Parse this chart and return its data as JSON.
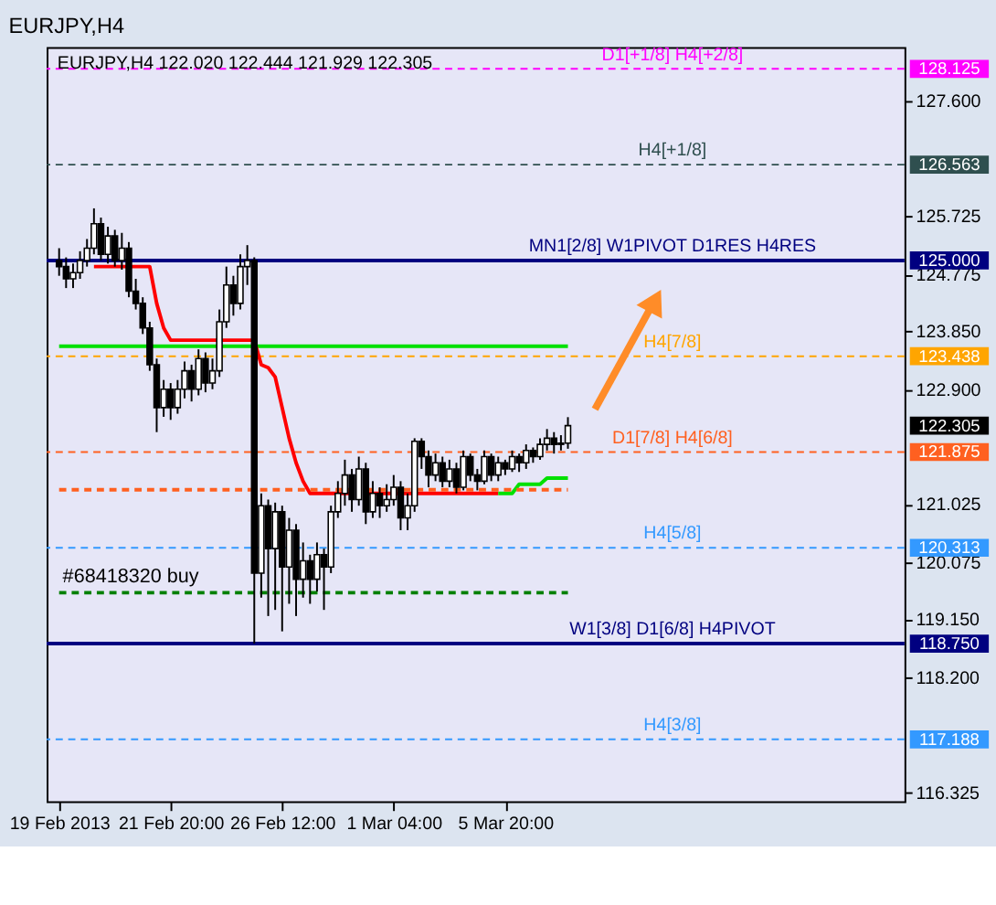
{
  "chart_data": {
    "type": "candlestick",
    "title": "EURJPY,H4",
    "subtitle": "EURJPY,H4  122.020 122.444 121.929 122.305",
    "categories": [
      "19 Feb 2013",
      null,
      null,
      null,
      null,
      null,
      null,
      null,
      null,
      null,
      null,
      null,
      null,
      null,
      null,
      null,
      "21 Feb 20:00",
      null,
      null,
      null,
      null,
      null,
      null,
      null,
      null,
      null,
      null,
      null,
      null,
      null,
      null,
      null,
      "26 Feb 12:00",
      null,
      null,
      null,
      null,
      null,
      null,
      null,
      null,
      null,
      null,
      null,
      null,
      null,
      null,
      null,
      "1 Mar 04:00",
      null,
      null,
      null,
      null,
      null,
      null,
      null,
      null,
      null,
      null,
      null,
      null,
      null,
      null,
      null,
      "5 Mar 20:00",
      null,
      null,
      null,
      null,
      null,
      null,
      null,
      null,
      null
    ],
    "ohlc": [
      [
        125.0,
        125.2,
        124.75,
        124.9
      ],
      [
        124.9,
        125.05,
        124.55,
        124.7
      ],
      [
        124.7,
        124.95,
        124.55,
        124.8
      ],
      [
        124.8,
        125.15,
        124.7,
        125.0
      ],
      [
        125.0,
        125.35,
        124.9,
        125.2
      ],
      [
        125.2,
        125.85,
        125.1,
        125.6
      ],
      [
        125.6,
        125.7,
        125.0,
        125.1
      ],
      [
        125.1,
        125.55,
        124.95,
        125.4
      ],
      [
        125.4,
        125.5,
        124.9,
        125.0
      ],
      [
        125.0,
        125.45,
        124.85,
        125.2
      ],
      [
        125.2,
        125.3,
        124.4,
        124.5
      ],
      [
        124.5,
        124.7,
        124.2,
        124.3
      ],
      [
        124.3,
        124.4,
        123.8,
        123.9
      ],
      [
        123.9,
        124.0,
        123.2,
        123.3
      ],
      [
        123.3,
        123.4,
        122.2,
        122.6
      ],
      [
        122.6,
        123.05,
        122.45,
        122.9
      ],
      [
        122.9,
        123.0,
        122.4,
        122.6
      ],
      [
        122.6,
        123.05,
        122.5,
        122.9
      ],
      [
        122.9,
        123.35,
        122.75,
        123.2
      ],
      [
        123.2,
        123.3,
        122.7,
        122.9
      ],
      [
        122.9,
        123.55,
        122.8,
        123.4
      ],
      [
        123.4,
        123.5,
        122.85,
        123.0
      ],
      [
        123.0,
        123.4,
        122.9,
        123.2
      ],
      [
        123.2,
        124.2,
        123.1,
        124.0
      ],
      [
        124.0,
        124.9,
        123.9,
        124.6
      ],
      [
        124.6,
        124.75,
        124.1,
        124.3
      ],
      [
        124.3,
        125.1,
        124.2,
        124.9
      ],
      [
        124.9,
        125.25,
        124.6,
        125.0
      ],
      [
        125.0,
        125.05,
        118.75,
        119.9
      ],
      [
        119.9,
        121.2,
        119.5,
        121.0
      ],
      [
        121.0,
        121.1,
        119.2,
        120.3
      ],
      [
        120.3,
        121.05,
        119.3,
        120.9
      ],
      [
        120.9,
        121.0,
        118.95,
        120.0
      ],
      [
        120.0,
        120.8,
        119.4,
        120.6
      ],
      [
        120.6,
        120.7,
        119.2,
        119.8
      ],
      [
        119.8,
        120.4,
        119.5,
        120.1
      ],
      [
        120.1,
        120.2,
        119.4,
        119.8
      ],
      [
        119.8,
        120.4,
        119.6,
        120.2
      ],
      [
        120.2,
        120.3,
        119.3,
        120.0
      ],
      [
        120.0,
        121.0,
        119.9,
        120.9
      ],
      [
        120.9,
        121.4,
        120.8,
        121.2
      ],
      [
        121.2,
        121.75,
        121.0,
        121.5
      ],
      [
        121.5,
        121.6,
        120.9,
        121.1
      ],
      [
        121.1,
        121.8,
        121.0,
        121.6
      ],
      [
        121.6,
        121.7,
        120.7,
        120.9
      ],
      [
        120.9,
        121.4,
        120.8,
        121.2
      ],
      [
        121.2,
        121.3,
        120.8,
        121.0
      ],
      [
        121.0,
        121.35,
        120.9,
        121.1
      ],
      [
        121.1,
        121.5,
        121.0,
        121.3
      ],
      [
        121.3,
        121.4,
        120.6,
        120.8
      ],
      [
        120.8,
        121.2,
        120.6,
        121.0
      ],
      [
        121.0,
        122.1,
        120.9,
        122.05
      ],
      [
        122.05,
        122.1,
        121.6,
        121.8
      ],
      [
        121.8,
        121.9,
        121.3,
        121.5
      ],
      [
        121.5,
        121.85,
        121.4,
        121.7
      ],
      [
        121.7,
        121.8,
        121.3,
        121.4
      ],
      [
        121.4,
        121.75,
        121.3,
        121.6
      ],
      [
        121.6,
        121.7,
        121.2,
        121.3
      ],
      [
        121.3,
        121.9,
        121.25,
        121.8
      ],
      [
        121.8,
        121.85,
        121.4,
        121.5
      ],
      [
        121.5,
        121.6,
        121.25,
        121.4
      ],
      [
        121.4,
        121.9,
        121.35,
        121.8
      ],
      [
        121.8,
        121.85,
        121.4,
        121.5
      ],
      [
        121.5,
        121.8,
        121.4,
        121.7
      ],
      [
        121.7,
        121.75,
        121.5,
        121.6
      ],
      [
        121.6,
        121.9,
        121.55,
        121.8
      ],
      [
        121.8,
        121.85,
        121.55,
        121.7
      ],
      [
        121.7,
        122.0,
        121.6,
        121.9
      ],
      [
        121.9,
        121.95,
        121.7,
        121.8
      ],
      [
        121.8,
        122.1,
        121.75,
        122.0
      ],
      [
        122.0,
        122.25,
        121.9,
        122.1
      ],
      [
        122.1,
        122.2,
        121.85,
        122.0
      ],
      [
        122.0,
        122.15,
        121.9,
        122.02
      ],
      [
        122.02,
        122.444,
        121.929,
        122.305
      ]
    ],
    "series": [
      {
        "type": "line",
        "color": "#00e000",
        "values": [
          123.6,
          123.6,
          123.6,
          123.6,
          123.6,
          123.6,
          123.6,
          123.6,
          123.6,
          123.6,
          123.6,
          123.6,
          123.6,
          123.6,
          123.6,
          123.6,
          123.6,
          123.6,
          123.6,
          123.6,
          123.6,
          123.6,
          123.6,
          123.6,
          123.6,
          123.6,
          123.6,
          123.6,
          123.6,
          123.6,
          123.6,
          123.6,
          123.6,
          123.6,
          123.6,
          123.6,
          123.6,
          123.6,
          123.6,
          123.6,
          123.6,
          123.6,
          123.6,
          123.6,
          123.6,
          123.6,
          123.6,
          123.6,
          123.6,
          123.6,
          123.6,
          123.6,
          123.6,
          123.6,
          123.6,
          123.6,
          123.6,
          123.6,
          123.6,
          123.6,
          123.6,
          123.6,
          123.6,
          123.6,
          123.6,
          123.6,
          123.6,
          123.6,
          123.6,
          123.6,
          123.6,
          123.6,
          123.6,
          123.6
        ]
      },
      {
        "type": "line",
        "color": "#ff0000",
        "values": [
          null,
          null,
          null,
          null,
          null,
          124.9,
          124.9,
          124.9,
          124.9,
          124.9,
          124.9,
          124.9,
          124.9,
          124.9,
          124.3,
          123.9,
          123.7,
          123.7,
          123.7,
          123.7,
          123.7,
          123.7,
          123.7,
          123.7,
          123.7,
          123.7,
          123.7,
          123.7,
          123.7,
          123.3,
          123.25,
          123.1,
          122.6,
          122.1,
          121.7,
          121.4,
          121.2,
          121.2,
          121.2,
          121.2,
          121.2,
          121.2,
          121.2,
          null,
          121.2,
          121.2,
          121.2,
          121.2,
          121.2,
          121.2,
          121.2,
          121.2,
          121.2,
          121.2,
          121.2,
          121.2,
          121.2,
          121.2,
          121.2,
          121.2,
          121.2,
          121.2,
          121.2,
          121.2,
          null,
          null,
          null,
          null,
          null,
          null,
          null,
          null,
          null,
          null
        ]
      },
      {
        "type": "line",
        "color": "#00e000",
        "values": [
          null,
          null,
          null,
          null,
          null,
          null,
          null,
          null,
          null,
          null,
          null,
          null,
          null,
          null,
          null,
          null,
          null,
          null,
          null,
          null,
          null,
          null,
          null,
          null,
          null,
          null,
          null,
          null,
          null,
          null,
          null,
          null,
          null,
          null,
          null,
          null,
          null,
          null,
          null,
          null,
          null,
          null,
          null,
          null,
          null,
          null,
          null,
          null,
          null,
          null,
          null,
          null,
          null,
          null,
          null,
          null,
          null,
          null,
          null,
          null,
          null,
          null,
          null,
          121.2,
          121.2,
          121.2,
          121.35,
          121.35,
          121.35,
          121.35,
          121.45,
          121.45,
          121.45,
          121.45
        ]
      },
      {
        "type": "line",
        "color": "#ff6020",
        "line_style": "dashed",
        "values": [
          121.26,
          121.26,
          121.26,
          121.26,
          121.26,
          121.26,
          121.26,
          121.26,
          121.26,
          121.26,
          121.26,
          121.26,
          121.26,
          121.26,
          121.26,
          121.26,
          121.26,
          121.26,
          121.26,
          121.26,
          121.26,
          121.26,
          121.26,
          121.26,
          121.26,
          121.26,
          121.26,
          121.26,
          121.26,
          121.26,
          121.26,
          121.26,
          121.26,
          121.26,
          121.26,
          121.26,
          121.26,
          121.26,
          121.26,
          121.26,
          121.26,
          121.26,
          121.26,
          null,
          121.26,
          121.26,
          121.26,
          121.26,
          121.26,
          121.26,
          121.26,
          121.26,
          121.26,
          121.26,
          121.26,
          121.26,
          121.26,
          121.26,
          121.26,
          121.26,
          121.26,
          121.26,
          121.26,
          121.26,
          121.26,
          121.26,
          121.26,
          121.26,
          121.26,
          121.26,
          121.26,
          121.26,
          121.26,
          121.26
        ]
      },
      {
        "type": "line",
        "name": "#68418320 buy",
        "color": "#008000",
        "line_style": "dashed",
        "values": [
          119.58,
          119.58,
          119.58,
          119.58,
          119.58,
          119.58,
          119.58,
          119.58,
          119.58,
          119.58,
          119.58,
          119.58,
          119.58,
          119.58,
          119.58,
          119.58,
          119.58,
          119.58,
          119.58,
          119.58,
          119.58,
          119.58,
          119.58,
          119.58,
          119.58,
          119.58,
          119.58,
          119.58,
          119.58,
          119.58,
          119.58,
          119.58,
          119.58,
          119.58,
          119.58,
          119.58,
          119.58,
          119.58,
          119.58,
          119.58,
          119.58,
          119.58,
          119.58,
          119.58,
          119.58,
          119.58,
          119.58,
          119.58,
          119.58,
          119.58,
          119.58,
          119.58,
          119.58,
          119.58,
          119.58,
          119.58,
          119.58,
          119.58,
          119.58,
          119.58,
          119.58,
          119.58,
          119.58,
          119.58,
          119.58,
          119.58,
          119.58,
          119.58,
          119.58,
          119.58,
          119.58,
          119.58,
          119.58,
          119.58
        ]
      }
    ],
    "ylim": [
      116.18,
      128.48
    ],
    "yticks": [
      {
        "value": 127.6,
        "label": "127.600"
      },
      {
        "value": 125.725,
        "label": "125.725"
      },
      {
        "value": 124.775,
        "label": "124.775"
      },
      {
        "value": 123.85,
        "label": "123.850"
      },
      {
        "value": 122.9,
        "label": "122.900"
      },
      {
        "value": 121.025,
        "label": "121.025"
      },
      {
        "value": 120.075,
        "label": "120.075"
      },
      {
        "value": 119.15,
        "label": "119.150"
      },
      {
        "value": 118.2,
        "label": "118.200"
      },
      {
        "value": 116.325,
        "label": "116.325"
      }
    ],
    "ref_lines": [
      {
        "axis": "y",
        "value": 128.125,
        "label": "D1[+1/8] H4[+2/8]",
        "color": "#ff00ff",
        "line_style": "dashed"
      },
      {
        "axis": "y",
        "value": 126.563,
        "label": "H4[+1/8]",
        "color": "#2f4f4f",
        "line_style": "dashed"
      },
      {
        "axis": "y",
        "value": 125.0,
        "label": "MN1[2/8] W1PIVOT D1RES H4RES",
        "color": "#000080",
        "line_style": "solid"
      },
      {
        "axis": "y",
        "value": 123.438,
        "label": "H4[7/8]",
        "color": "#ffa500",
        "line_style": "dashed"
      },
      {
        "axis": "y",
        "value": 121.875,
        "label": "D1[7/8] H4[6/8]",
        "color": "#ff6020",
        "line_style": "dashed"
      },
      {
        "axis": "y",
        "value": 120.313,
        "label": "H4[5/8]",
        "color": "#3399ff",
        "line_style": "dashed"
      },
      {
        "axis": "y",
        "value": 118.75,
        "label": "W1[3/8] D1[6/8] H4PIVOT",
        "color": "#000080",
        "line_style": "solid"
      },
      {
        "axis": "y",
        "value": 117.188,
        "label": "H4[3/8]",
        "color": "#3399ff",
        "line_style": "dashed"
      }
    ],
    "annotations": [
      "122.305",
      "128.125",
      "126.563",
      "125.000",
      "123.438",
      "121.875",
      "120.313",
      "118.750",
      "117.188"
    ],
    "grid": false
  }
}
